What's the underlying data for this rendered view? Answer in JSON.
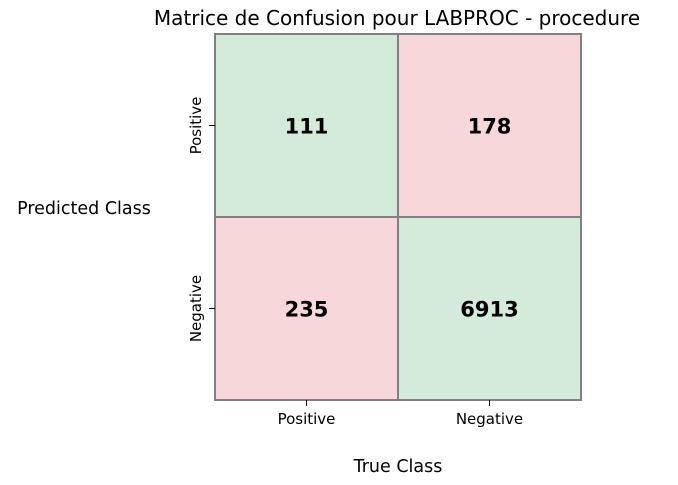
{
  "chart_data": {
    "type": "heatmap",
    "title": "Matrice de Confusion pour LABPROC - procedure",
    "xlabel": "True Class",
    "ylabel": "Predicted Class",
    "x_categories": [
      "Positive",
      "Negative"
    ],
    "y_categories": [
      "Positive",
      "Negative"
    ],
    "values": [
      [
        111,
        178
      ],
      [
        235,
        6913
      ]
    ],
    "cell_colors": [
      [
        "#d4ebd9",
        "#f7d7da"
      ],
      [
        "#f7d7da",
        "#d4ebd9"
      ]
    ],
    "grid_color": "#808080",
    "grid": true,
    "legend": "none"
  }
}
